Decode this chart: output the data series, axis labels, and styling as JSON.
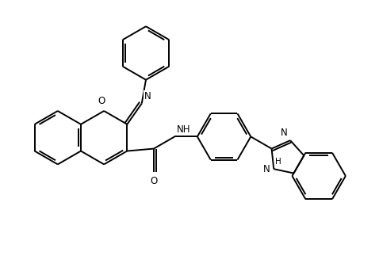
{
  "bg_color": "#ffffff",
  "line_color": "#000000",
  "lw": 1.4,
  "fs": 8.5,
  "xlim": [
    0,
    10
  ],
  "ylim": [
    0,
    7.4
  ]
}
